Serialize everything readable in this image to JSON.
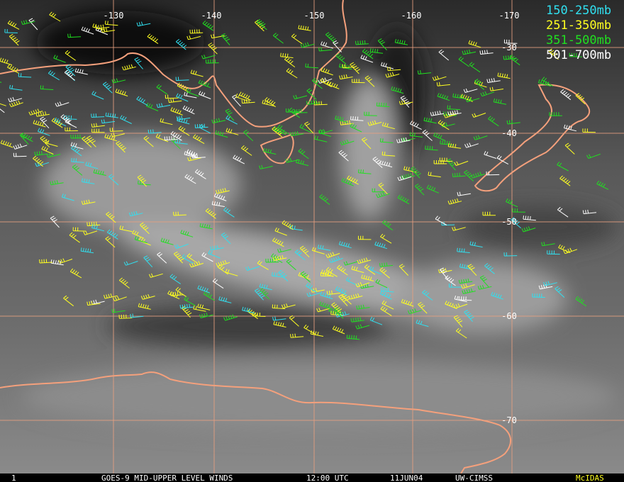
{
  "map": {
    "lon_labels": [
      "-130",
      "-140",
      "-150",
      "-160",
      "-170"
    ],
    "lat_labels": [
      "-30",
      "-40",
      "-50",
      "-60",
      "-70"
    ],
    "legend": [
      {
        "label": "150-250mb",
        "color": "#30e0f0"
      },
      {
        "label": "251-350mb",
        "color": "#ffff20"
      },
      {
        "label": "351-500mb",
        "color": "#20e020"
      },
      {
        "label": "501-700mb",
        "color": "#ffffff"
      }
    ],
    "footer": {
      "frame": "1",
      "title": "GOES-9 MID-UPPER LEVEL WINDS",
      "time": "12:00 UTC",
      "date": "11JUN04",
      "source": "UW-CIMSS",
      "software": "McIDAS"
    }
  }
}
